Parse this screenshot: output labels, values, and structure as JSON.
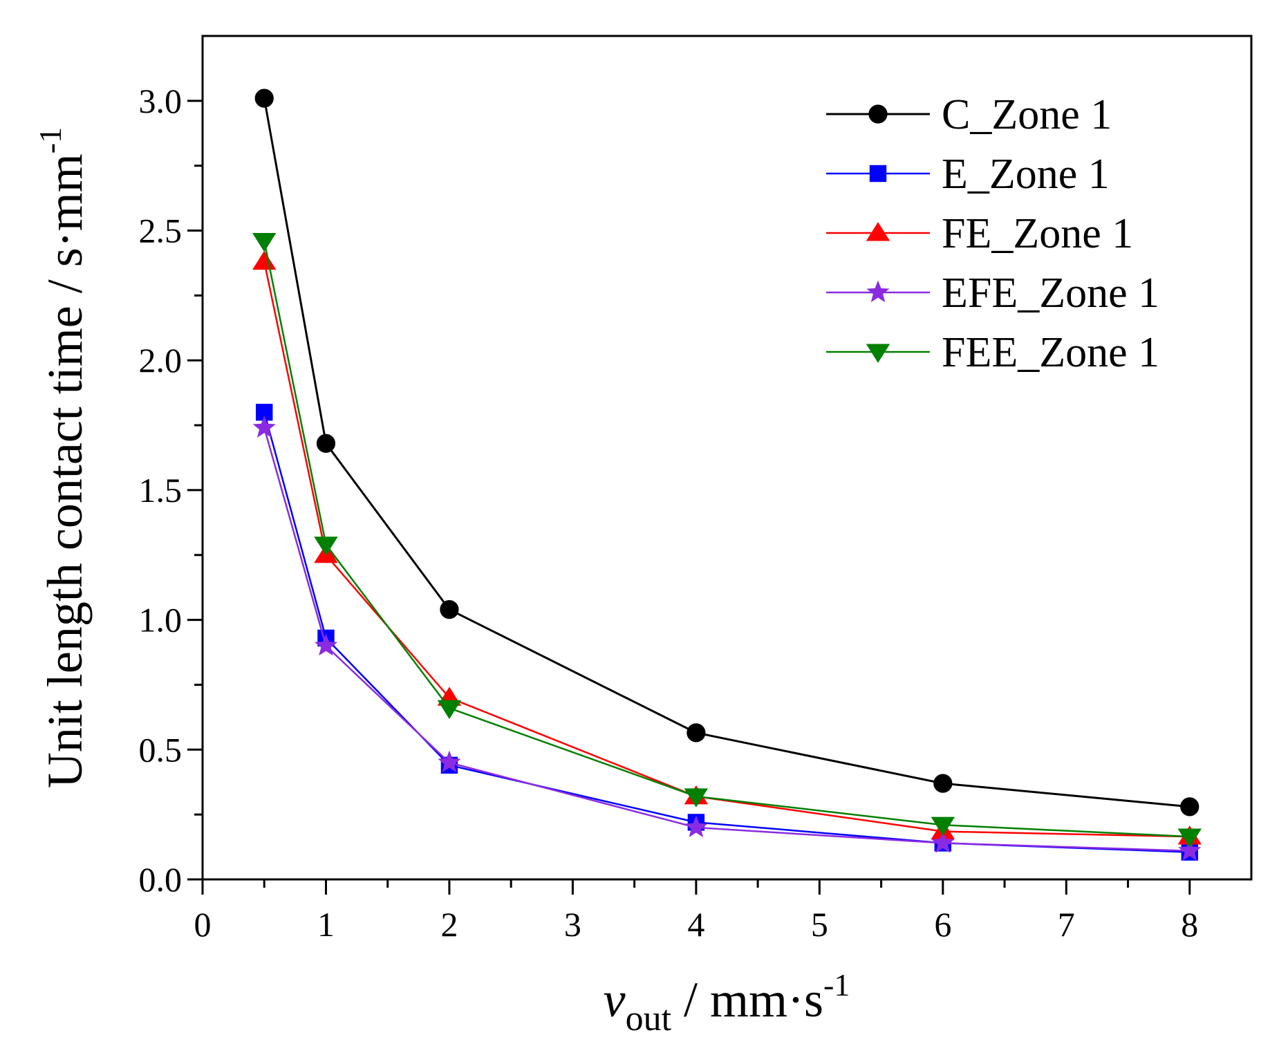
{
  "chart_data": {
    "type": "line",
    "title": "",
    "xlabel": {
      "main": "v",
      "sub": "out",
      "rest": " / mm·s",
      "sup": "-1"
    },
    "ylabel": {
      "main": "Unit length contact time / s·mm",
      "sup": "-1"
    },
    "xlim": [
      0,
      8.5
    ],
    "ylim": [
      0,
      3.25
    ],
    "xticks": [
      0,
      1,
      2,
      3,
      4,
      5,
      6,
      7,
      8
    ],
    "xtick_labels": [
      "0",
      "1",
      "2",
      "3",
      "4",
      "5",
      "6",
      "7",
      "8"
    ],
    "yticks": [
      0.0,
      0.5,
      1.0,
      1.5,
      2.0,
      2.5,
      3.0
    ],
    "ytick_labels": [
      "0.0",
      "0.5",
      "1.0",
      "1.5",
      "2.0",
      "2.5",
      "3.0"
    ],
    "legend_position": "top-right",
    "x": [
      0.5,
      1,
      2,
      4,
      6,
      8
    ],
    "series": [
      {
        "name": "C_Zone 1",
        "marker": "circle",
        "color": "#000000",
        "values": [
          3.01,
          1.68,
          1.04,
          0.565,
          0.37,
          0.28
        ]
      },
      {
        "name": "E_Zone 1",
        "marker": "square",
        "color": "#0000FF",
        "values": [
          1.8,
          0.93,
          0.44,
          0.22,
          0.14,
          0.105
        ]
      },
      {
        "name": "FE_Zone 1",
        "marker": "triangle-up",
        "color": "#FF0000",
        "values": [
          2.38,
          1.25,
          0.7,
          0.32,
          0.185,
          0.165
        ]
      },
      {
        "name": "EFE_Zone 1",
        "marker": "star",
        "color": "#8A2BE2",
        "values": [
          1.74,
          0.9,
          0.45,
          0.2,
          0.14,
          0.11
        ]
      },
      {
        "name": "FEE_Zone 1",
        "marker": "triangle-down",
        "color": "#008000",
        "values": [
          2.46,
          1.29,
          0.66,
          0.32,
          0.21,
          0.165
        ]
      }
    ]
  }
}
